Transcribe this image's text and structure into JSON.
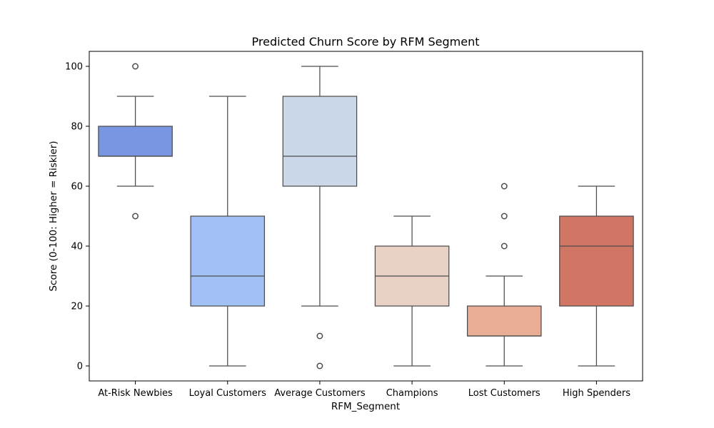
{
  "chart_data": {
    "type": "box",
    "title": "Predicted Churn Score by RFM Segment",
    "xlabel": "RFM_Segment",
    "ylabel": "Score (0-100: Higher = Riskier)",
    "ylim": [
      -5,
      105
    ],
    "yticks": [
      0,
      20,
      40,
      60,
      80,
      100
    ],
    "grid": false,
    "categories": [
      "At-Risk Newbies",
      "Loyal Customers",
      "Average Customers",
      "Champions",
      "Lost Customers",
      "High Spenders"
    ],
    "boxes": [
      {
        "category": "At-Risk Newbies",
        "whisker_low": 60,
        "q1": 70,
        "median": 70,
        "q3": 80,
        "whisker_high": 90,
        "outliers": [
          50,
          100
        ],
        "color": "#7896e2"
      },
      {
        "category": "Loyal Customers",
        "whisker_low": 0,
        "q1": 20,
        "median": 30,
        "q3": 50,
        "whisker_high": 90,
        "outliers": [],
        "color": "#a3c0f4"
      },
      {
        "category": "Average Customers",
        "whisker_low": 20,
        "q1": 60,
        "median": 70,
        "q3": 90,
        "whisker_high": 100,
        "outliers": [
          0,
          10
        ],
        "color": "#cbd8e9"
      },
      {
        "category": "Champions",
        "whisker_low": 0,
        "q1": 20,
        "median": 30,
        "q3": 40,
        "whisker_high": 50,
        "outliers": [],
        "color": "#e9d1c6"
      },
      {
        "category": "Lost Customers",
        "whisker_low": 0,
        "q1": 10,
        "median": 10,
        "q3": 20,
        "whisker_high": 30,
        "outliers": [
          40,
          50,
          60
        ],
        "color": "#e9ad96"
      },
      {
        "category": "High Spenders",
        "whisker_low": 0,
        "q1": 20,
        "median": 40,
        "q3": 50,
        "whisker_high": 60,
        "outliers": [],
        "color": "#d17665"
      }
    ],
    "line_color": "#4d4d4d"
  }
}
